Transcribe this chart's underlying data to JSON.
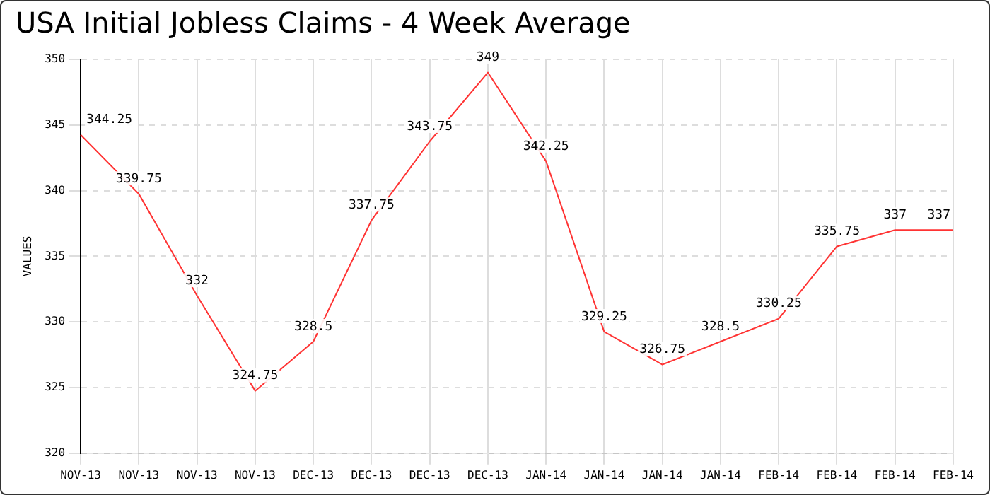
{
  "chart_data": {
    "type": "line",
    "title": "USA Initial Jobless Claims - 4 Week Average",
    "ylabel": "VALUES",
    "categories": [
      "NOV-13",
      "NOV-13",
      "NOV-13",
      "NOV-13",
      "DEC-13",
      "DEC-13",
      "DEC-13",
      "DEC-13",
      "JAN-14",
      "JAN-14",
      "JAN-14",
      "JAN-14",
      "FEB-14",
      "FEB-14",
      "FEB-14",
      "FEB-14"
    ],
    "series": [
      {
        "color": "#ff3333",
        "values": [
          344.25,
          339.75,
          332,
          324.75,
          328.5,
          337.75,
          343.75,
          349,
          342.25,
          329.25,
          326.75,
          328.5,
          330.25,
          335.75,
          337,
          337
        ]
      }
    ],
    "ylim": [
      320,
      350
    ],
    "yticks": [
      320,
      325,
      330,
      335,
      340,
      345,
      350
    ],
    "grid": true,
    "legend": false,
    "marker": "none",
    "line_style": "solid",
    "data_labels": true
  }
}
